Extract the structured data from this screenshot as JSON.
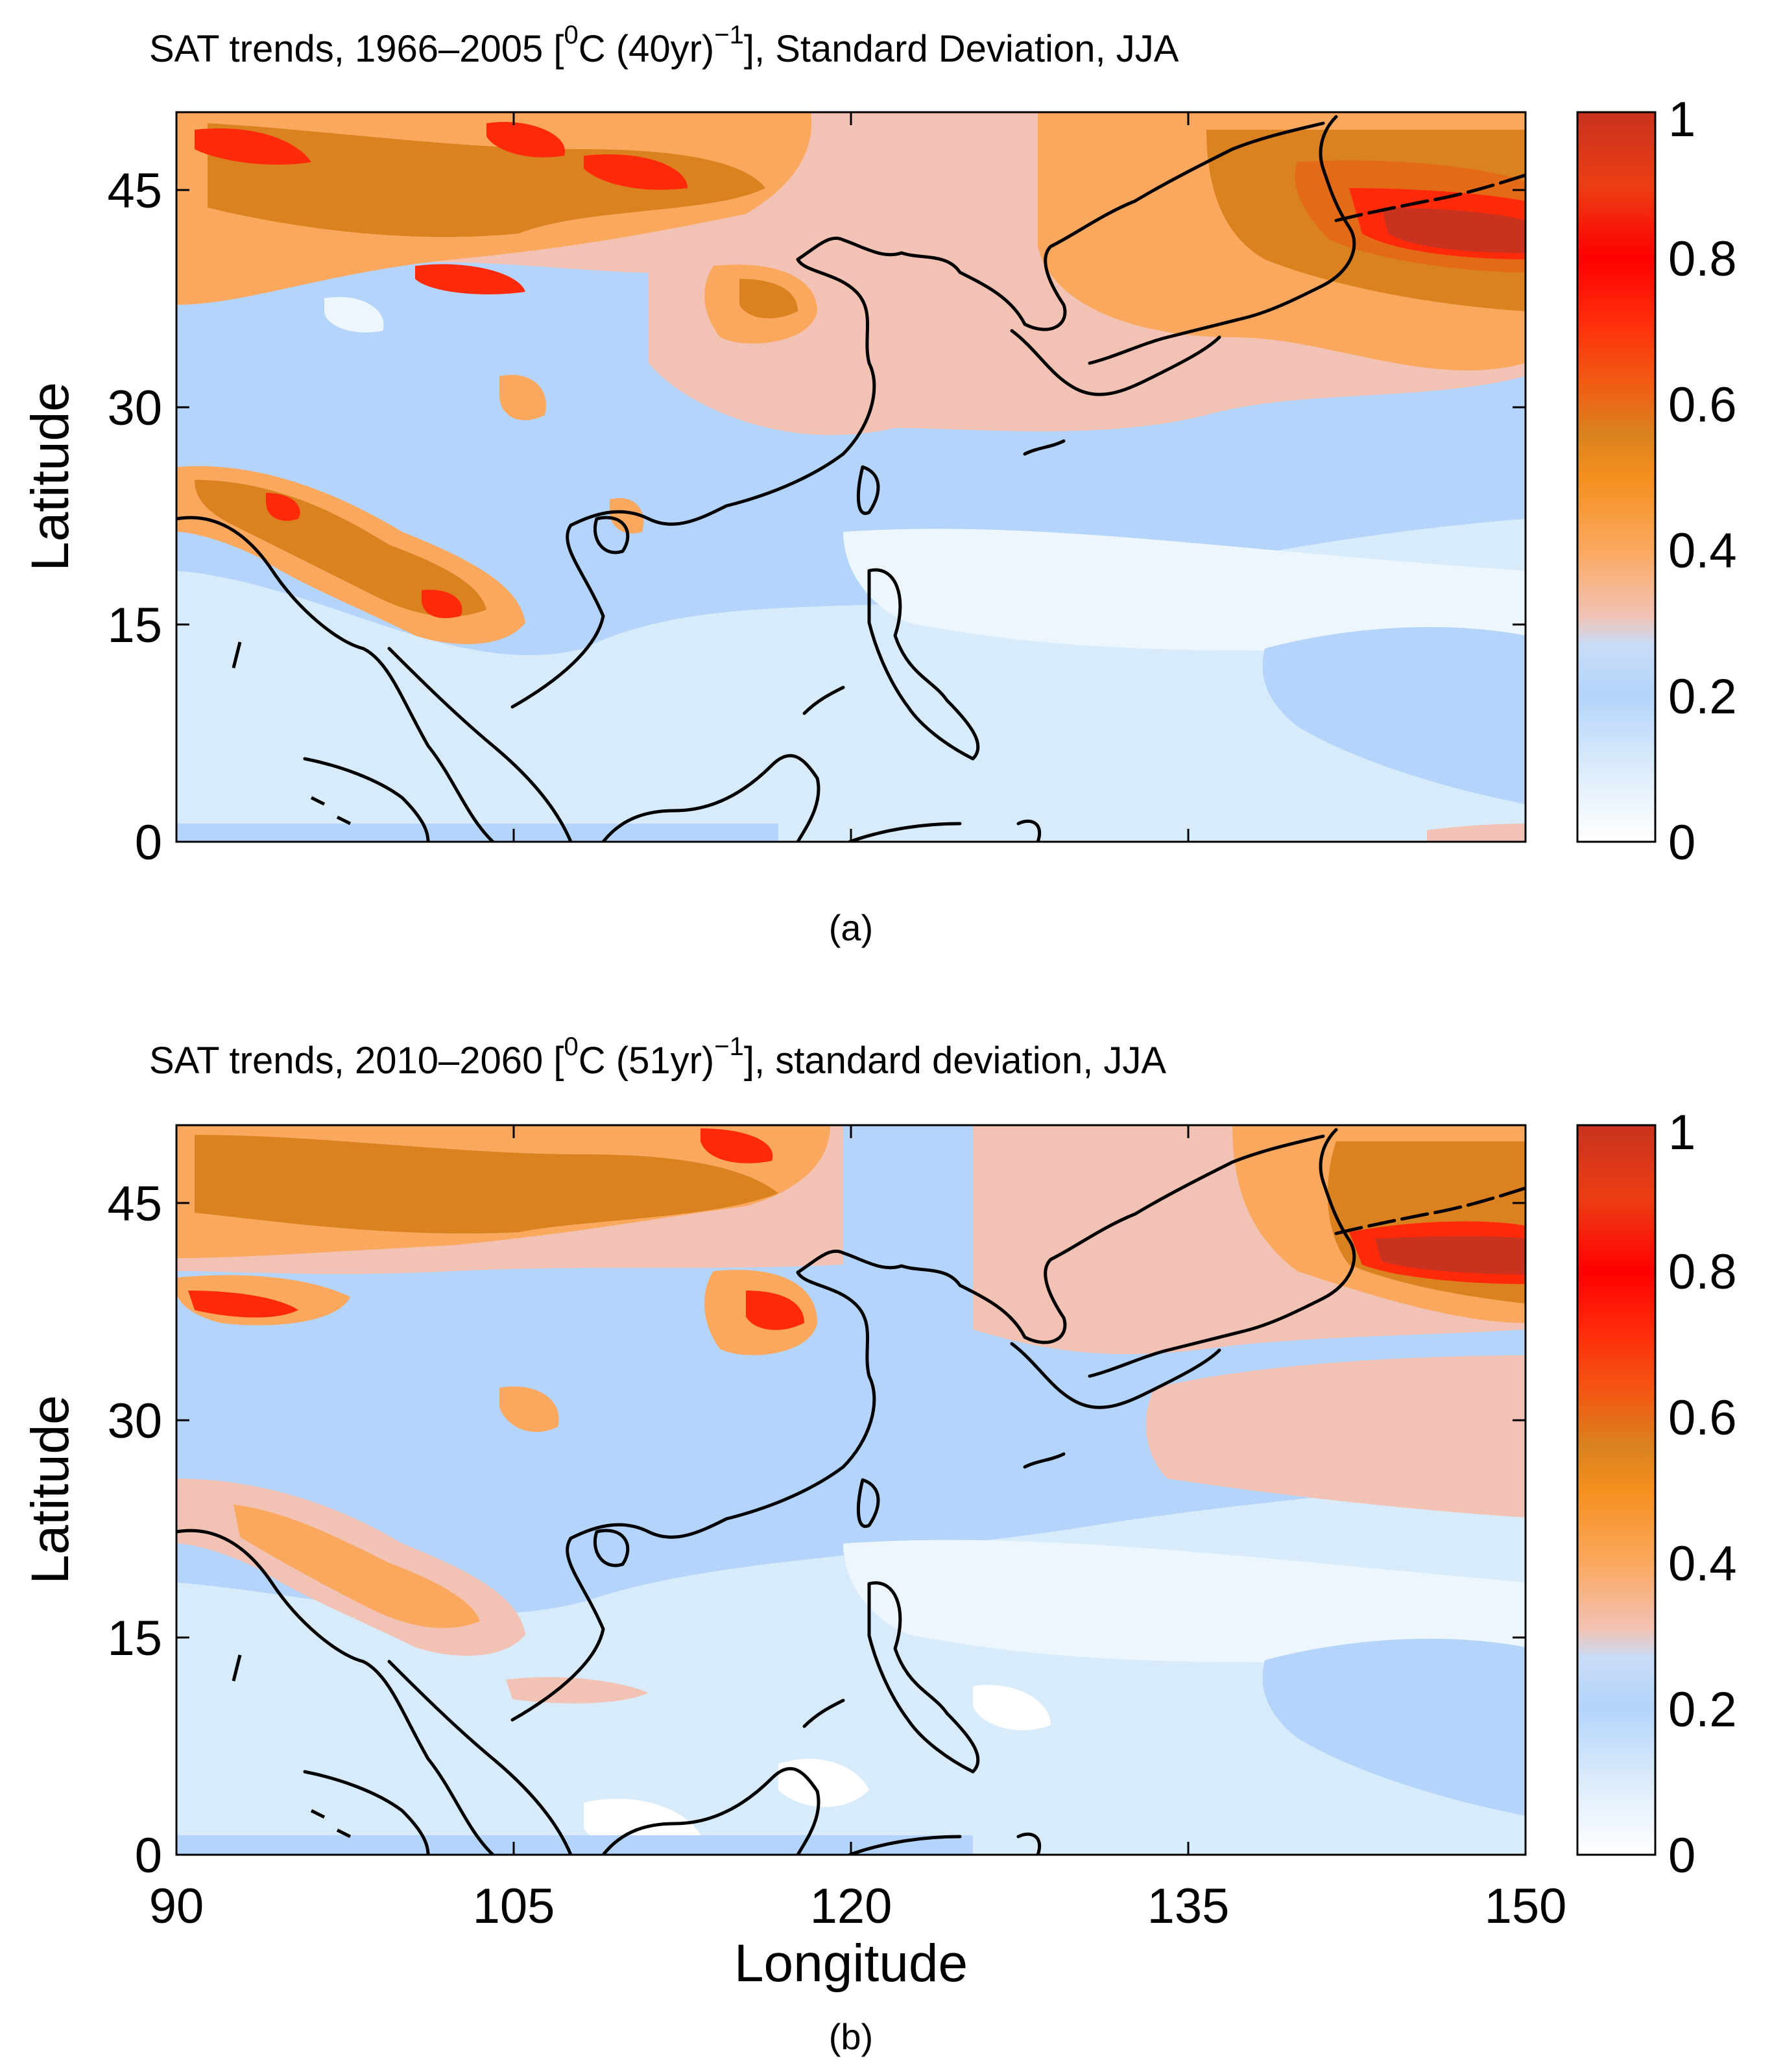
{
  "panels": [
    {
      "id": "a",
      "title_main": "SAT trends, 1966–2005 [",
      "title_sup1": "0",
      "title_unit": "C (40yr)",
      "title_sup2": "−1",
      "title_end": "], Standard Deviation, JJA",
      "caption": "(a)",
      "ylabel": "Latitude"
    },
    {
      "id": "b",
      "title_main": "SAT trends, 2010–2060 [",
      "title_sup1": "0",
      "title_unit": "C (51yr)",
      "title_sup2": "−1",
      "title_end": "], standard deviation, JJA",
      "caption": "(b)",
      "ylabel": "Latitude",
      "xlabel": "Longitude"
    }
  ],
  "axes": {
    "lon_range": [
      90,
      150
    ],
    "lat_range": [
      0,
      50
    ],
    "lon_ticks": [
      "90",
      "105",
      "120",
      "135",
      "150"
    ],
    "lat_ticks": [
      "0",
      "15",
      "30",
      "45"
    ]
  },
  "colorbar": {
    "range": [
      0,
      1
    ],
    "ticks": [
      "0",
      "0.2",
      "0.4",
      "0.6",
      "0.8",
      "1"
    ],
    "colors": {
      "0.00": "#ffffff",
      "0.05": "#eef6fd",
      "0.10": "#d8ebfb",
      "0.15": "#c6e0fb",
      "0.20": "#b4d4fb",
      "0.25": "#c9dcf6",
      "0.30": "#f2c2b4",
      "0.35": "#f8b493",
      "0.40": "#fba85f",
      "0.45": "#fd9b3a",
      "0.50": "#f58f1e",
      "0.55": "#d9821f",
      "0.60": "#e36a16",
      "0.65": "#f85012",
      "0.70": "#ff2a0a",
      "0.75": "#ff1a05",
      "0.80": "#ff0000",
      "0.85": "#f53a1a",
      "0.90": "#ec3e14",
      "0.95": "#d9331a",
      "1.00": "#c8321e"
    }
  }
}
